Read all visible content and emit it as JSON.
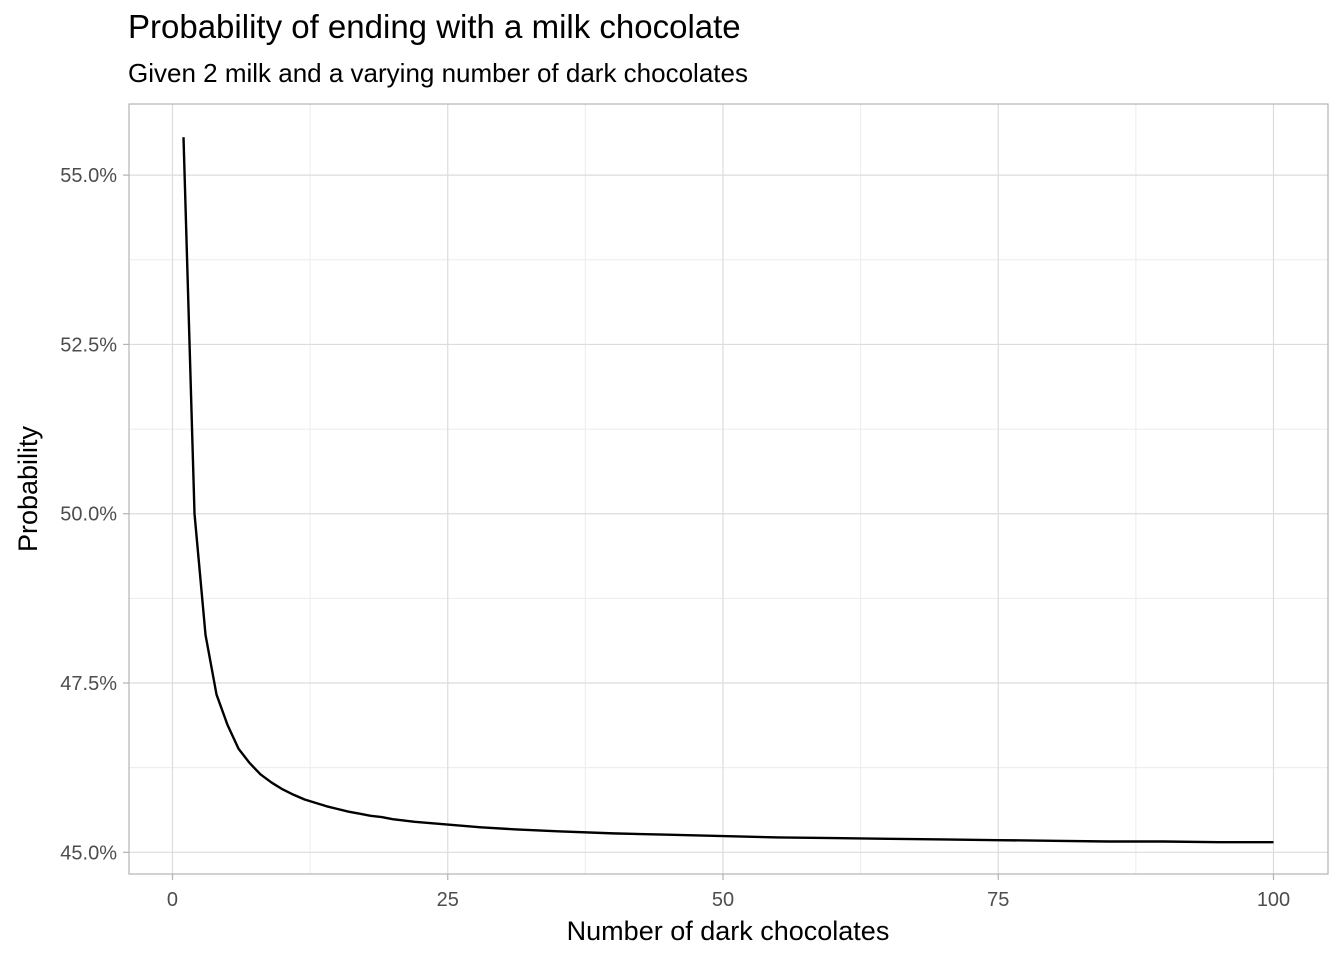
{
  "chart_data": {
    "type": "line",
    "title": "Probability of ending with a milk chocolate",
    "subtitle": "Given 2 milk and a varying number of dark chocolates",
    "xlabel": "Number of dark chocolates",
    "ylabel": "Probability",
    "xlim": [
      -3.95,
      104.95
    ],
    "ylim": [
      0.4468,
      0.5605
    ],
    "x_ticks": [
      0,
      25,
      50,
      75,
      100
    ],
    "x_tick_labels": [
      "0",
      "25",
      "50",
      "75",
      "100"
    ],
    "y_ticks": [
      0.45,
      0.475,
      0.5,
      0.525,
      0.55
    ],
    "y_tick_labels": [
      "45.0%",
      "47.5%",
      "50.0%",
      "52.5%",
      "55.0%"
    ],
    "grid": true,
    "legend": "none",
    "series_color": "#000000",
    "series": [
      {
        "x": [
          1,
          2,
          3,
          4,
          5,
          6,
          7,
          8,
          9,
          10,
          11,
          12,
          13,
          14,
          15,
          16,
          17,
          18,
          19,
          20,
          22,
          25,
          28,
          31,
          35,
          40,
          45,
          50,
          55,
          60,
          65,
          70,
          75,
          80,
          85,
          90,
          95,
          100
        ],
        "values": [
          0.5556,
          0.5,
          0.4821,
          0.4733,
          0.4688,
          0.4653,
          0.4632,
          0.4615,
          0.4603,
          0.4593,
          0.4585,
          0.4578,
          0.4573,
          0.4568,
          0.4564,
          0.456,
          0.4557,
          0.4554,
          0.4552,
          0.4549,
          0.4545,
          0.4541,
          0.4537,
          0.4534,
          0.4531,
          0.4528,
          0.4526,
          0.4524,
          0.4522,
          0.4521,
          0.452,
          0.4519,
          0.4518,
          0.4517,
          0.4516,
          0.4516,
          0.4515,
          0.4515
        ]
      }
    ]
  }
}
